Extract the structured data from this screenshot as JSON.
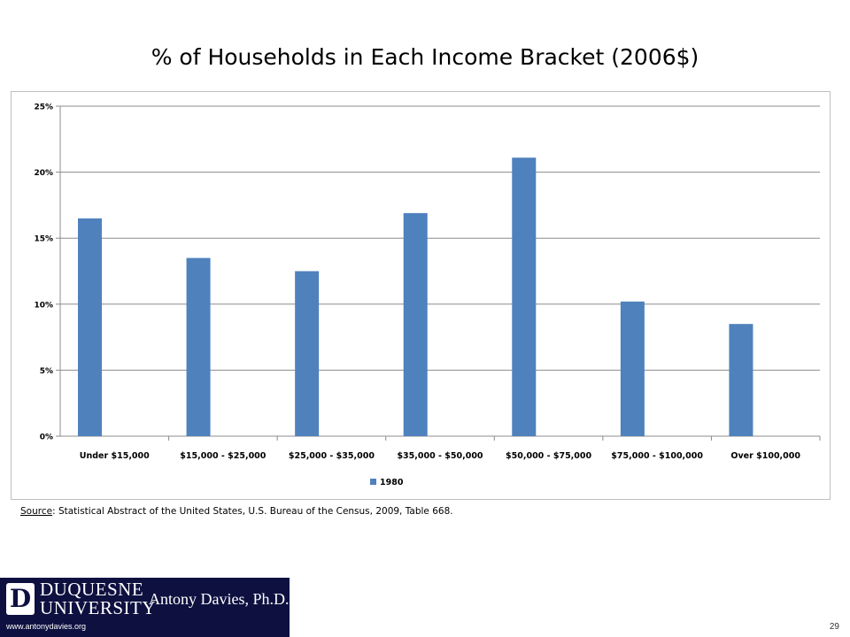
{
  "slide": {
    "title": "% of Households in Each Income Bracket (2006$)",
    "source_label": "Source",
    "source_text": ": Statistical Abstract of the United States, U.S. Bureau of the Census, 2009, Table 668.",
    "page_number": "29"
  },
  "footer": {
    "logo_letter": "D",
    "university_line1": "DUQUESNE",
    "university_line2": "UNIVERSITY",
    "person": "Antony Davies, Ph.D.",
    "url": "www.antonydavies.org",
    "background_color": "#0e1140"
  },
  "chart_data": {
    "type": "bar",
    "categories": [
      "Under $15,000",
      "$15,000 - $25,000",
      "$25,000 - $35,000",
      "$35,000 - $50,000",
      "$50,000 - $75,000",
      "$75,000 - $100,000",
      "Over $100,000"
    ],
    "series": [
      {
        "name": "1980",
        "values": [
          16.5,
          13.5,
          12.5,
          16.9,
          21.1,
          10.2,
          8.5
        ],
        "color": "#4f81bd"
      }
    ],
    "ylim": [
      0,
      25
    ],
    "yticks": [
      0,
      5,
      10,
      15,
      20,
      25
    ],
    "ytick_format": "percent",
    "grid": true,
    "legend_position": "bottom"
  }
}
